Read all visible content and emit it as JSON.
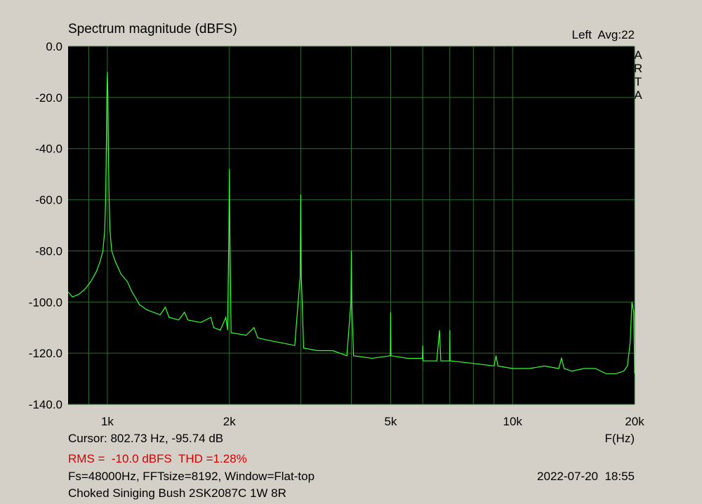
{
  "chart_data": {
    "type": "line",
    "title": "Spectrum magnitude (dBFS)",
    "channel": "Left  Avg:22",
    "brand": "ARTA",
    "x_label": "F(Hz)",
    "cursor": "Cursor: 802.73 Hz, -95.74 dB",
    "measurement": "RMS =  -10.0 dBFS  THD =1.28%",
    "settings": "Fs=48000Hz, FFTsize=8192, Window=Flat-top",
    "timestamp": "2022-07-20  18:55",
    "caption": "Choked Siniging Bush 2SK2087C 1W 8R",
    "xscale": "log",
    "xlim": [
      800,
      20000
    ],
    "xticks": [
      {
        "value": 1000,
        "label": "1k"
      },
      {
        "value": 2000,
        "label": "2k"
      },
      {
        "value": 5000,
        "label": "5k"
      },
      {
        "value": 10000,
        "label": "10k"
      },
      {
        "value": 20000,
        "label": "20k"
      }
    ],
    "xminor": [
      900,
      3000,
      4000,
      6000,
      7000,
      8000,
      9000
    ],
    "ylim": [
      -140,
      0
    ],
    "yticks": [
      {
        "value": 0,
        "label": "0.0"
      },
      {
        "value": -20,
        "label": "-20.0"
      },
      {
        "value": -40,
        "label": "-40.0"
      },
      {
        "value": -60,
        "label": "-60.0"
      },
      {
        "value": -80,
        "label": "-80.0"
      },
      {
        "value": -100,
        "label": "-100.0"
      },
      {
        "value": -120,
        "label": "-120.0"
      },
      {
        "value": -140,
        "label": "-140.0"
      }
    ],
    "grid": true,
    "grid_color": "#2f6e2f",
    "background": "#000000",
    "color": "#33ff33",
    "x": [
      800,
      820,
      850,
      880,
      910,
      940,
      960,
      975,
      985,
      990,
      994,
      997,
      1000,
      1003,
      1006,
      1010,
      1015,
      1025,
      1045,
      1080,
      1120,
      1150,
      1170,
      1200,
      1250,
      1350,
      1390,
      1420,
      1500,
      1550,
      1580,
      1700,
      1800,
      1830,
      1900,
      1960,
      1980,
      1995,
      2000,
      2005,
      2020,
      2200,
      2300,
      2350,
      2500,
      2700,
      2900,
      2990,
      3000,
      3010,
      3050,
      3300,
      3600,
      3900,
      3990,
      4000,
      4010,
      4050,
      4500,
      4990,
      5000,
      5010,
      5500,
      5990,
      6000,
      6010,
      6500,
      6600,
      6650,
      6990,
      7000,
      7010,
      8000,
      9000,
      9100,
      9200,
      10000,
      11000,
      12000,
      13000,
      13200,
      13400,
      14000,
      15000,
      16000,
      17000,
      18000,
      18800,
      19200,
      19500,
      19700,
      19900,
      20000
    ],
    "values": [
      -96,
      -98,
      -97,
      -95,
      -92,
      -88,
      -84,
      -80,
      -72,
      -60,
      -40,
      -20,
      -10,
      -20,
      -40,
      -60,
      -72,
      -80,
      -84,
      -89,
      -92,
      -96,
      -98,
      -101,
      -103,
      -105,
      -102,
      -106,
      -107,
      -104,
      -107,
      -108,
      -106,
      -110,
      -111,
      -106,
      -111,
      -70,
      -48,
      -70,
      -112,
      -113,
      -110,
      -114,
      -115,
      -116,
      -117,
      -90,
      -58,
      -90,
      -118,
      -119,
      -119,
      -121,
      -100,
      -80,
      -100,
      -121,
      -122,
      -121,
      -104,
      -121,
      -122,
      -122,
      -117,
      -123,
      -123,
      -111,
      -123,
      -123,
      -111,
      -123,
      -124,
      -125,
      -121,
      -125,
      -126,
      -126,
      -125,
      -126,
      -122,
      -126,
      -127,
      -126,
      -126,
      -128,
      -128,
      -127,
      -125,
      -116,
      -100,
      -104,
      -128
    ]
  }
}
